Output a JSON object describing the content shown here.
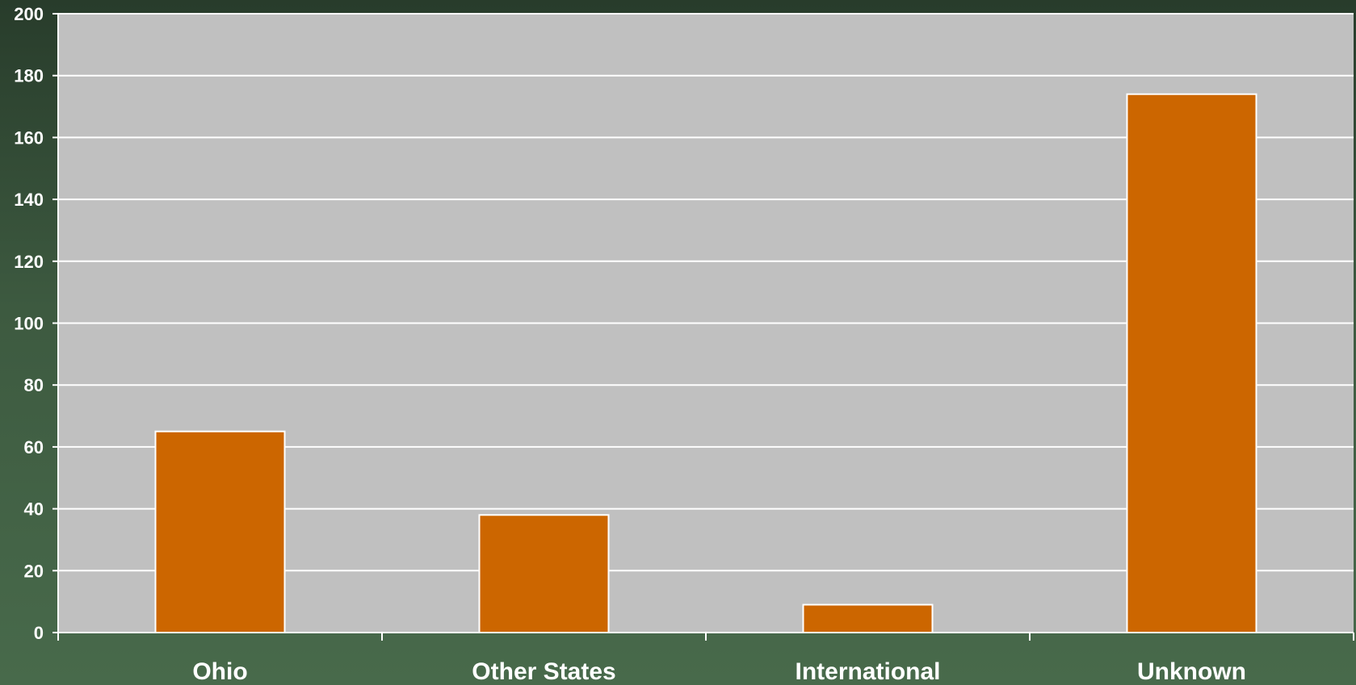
{
  "chart_data": {
    "type": "bar",
    "categories": [
      "Ohio",
      "Other States",
      "International",
      "Unknown"
    ],
    "values": [
      65,
      38,
      9,
      174
    ],
    "ylim": [
      0,
      200
    ],
    "yticks": [
      "0",
      "20",
      "40",
      "60",
      "80",
      "100",
      "120",
      "140",
      "160",
      "180",
      "200"
    ],
    "title": "",
    "xlabel": "",
    "ylabel": "",
    "grid": true,
    "legend": "none"
  },
  "colors": {
    "bar_fill": "#cc6600",
    "bar_stroke": "#ffffff",
    "plot_background": "#c0c0c0",
    "gridline": "#ffffff",
    "axis": "#ffffff",
    "text": "#ffffff"
  }
}
